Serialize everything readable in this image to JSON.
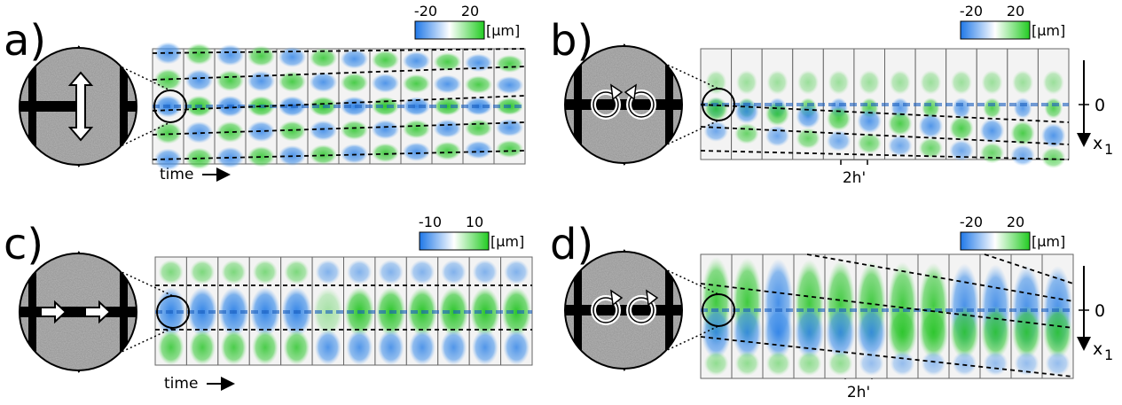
{
  "panels": [
    {
      "label": "a)",
      "colorbar": {
        "min": "-20",
        "max": "20",
        "unit": "[µm]"
      },
      "time_label": "time"
    },
    {
      "label": "b)",
      "colorbar": {
        "min": "-20",
        "max": "20",
        "unit": "[µm]"
      },
      "axis": {
        "zero": "0",
        "x": "x",
        "x_sub": "1"
      },
      "scale_label": "2h'"
    },
    {
      "label": "c)",
      "colorbar": {
        "min": "-10",
        "max": "10",
        "unit": "[µm]"
      },
      "time_label": "time"
    },
    {
      "label": "d)",
      "colorbar": {
        "min": "-20",
        "max": "20",
        "unit": "[µm]"
      },
      "axis": {
        "zero": "0",
        "x": "x",
        "x_sub": "1"
      },
      "scale_label": "2h'"
    }
  ]
}
